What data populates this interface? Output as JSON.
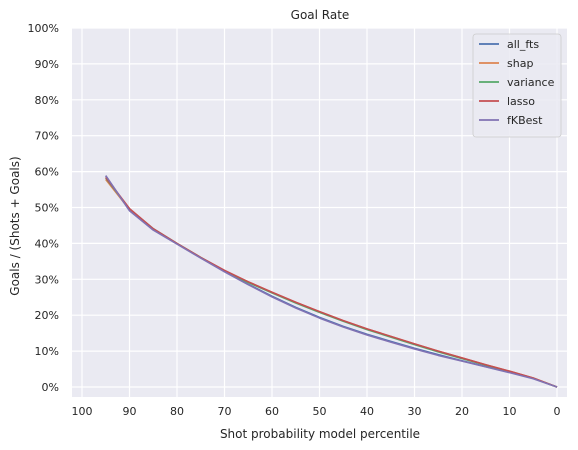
{
  "chart_data": {
    "type": "line",
    "title": "Goal Rate",
    "xlabel": "Shot probability model percentile",
    "ylabel": "Goals / (Shots + Goals)",
    "xlim": [
      100,
      0
    ],
    "ylim": [
      0,
      100
    ],
    "x_ticks": [
      100,
      90,
      80,
      70,
      60,
      50,
      40,
      30,
      20,
      10,
      0
    ],
    "x_tick_labels": [
      "100",
      "90",
      "80",
      "70",
      "60",
      "50",
      "40",
      "30",
      "20",
      "10",
      "0"
    ],
    "y_ticks": [
      0,
      10,
      20,
      30,
      40,
      50,
      60,
      70,
      80,
      90,
      100
    ],
    "y_tick_labels": [
      "0%",
      "10%",
      "20%",
      "30%",
      "40%",
      "50%",
      "60%",
      "70%",
      "80%",
      "90%",
      "100%"
    ],
    "grid": true,
    "legend_position": "top-right",
    "x": [
      95,
      90,
      85,
      80,
      75,
      70,
      65,
      60,
      55,
      50,
      45,
      40,
      35,
      30,
      25,
      20,
      15,
      10,
      5,
      0
    ],
    "series": [
      {
        "name": "all_fts",
        "color": "#4c72b0",
        "values": [
          58.8,
          49.2,
          43.8,
          39.9,
          36.0,
          32.2,
          28.6,
          25.3,
          22.2,
          19.4,
          16.9,
          14.7,
          12.7,
          10.8,
          9.0,
          7.3,
          5.7,
          4.1,
          2.4,
          0.0
        ]
      },
      {
        "name": "shap",
        "color": "#dd8452",
        "values": [
          57.8,
          49.4,
          44.0,
          39.9,
          36.0,
          32.3,
          29.3,
          26.4,
          23.6,
          21.0,
          18.5,
          16.2,
          14.1,
          12.0,
          10.0,
          8.1,
          6.2,
          4.4,
          2.5,
          0.0
        ]
      },
      {
        "name": "variance",
        "color": "#55a868",
        "values": [
          58.2,
          49.6,
          44.1,
          40.0,
          36.1,
          32.4,
          29.1,
          26.2,
          23.4,
          20.8,
          18.3,
          16.0,
          13.9,
          11.8,
          9.8,
          7.9,
          6.1,
          4.3,
          2.4,
          0.0
        ]
      },
      {
        "name": "lasso",
        "color": "#c44e52",
        "values": [
          58.4,
          49.7,
          44.1,
          40.0,
          36.1,
          32.5,
          29.3,
          26.4,
          23.6,
          21.0,
          18.5,
          16.2,
          14.1,
          12.0,
          10.0,
          8.1,
          6.2,
          4.4,
          2.5,
          0.0
        ]
      },
      {
        "name": "fKBest",
        "color": "#8172b3",
        "values": [
          58.9,
          49.1,
          43.7,
          39.8,
          35.9,
          32.1,
          28.5,
          25.1,
          22.0,
          19.2,
          16.7,
          14.5,
          12.5,
          10.6,
          8.8,
          7.2,
          5.6,
          4.0,
          2.3,
          0.0
        ]
      }
    ]
  }
}
